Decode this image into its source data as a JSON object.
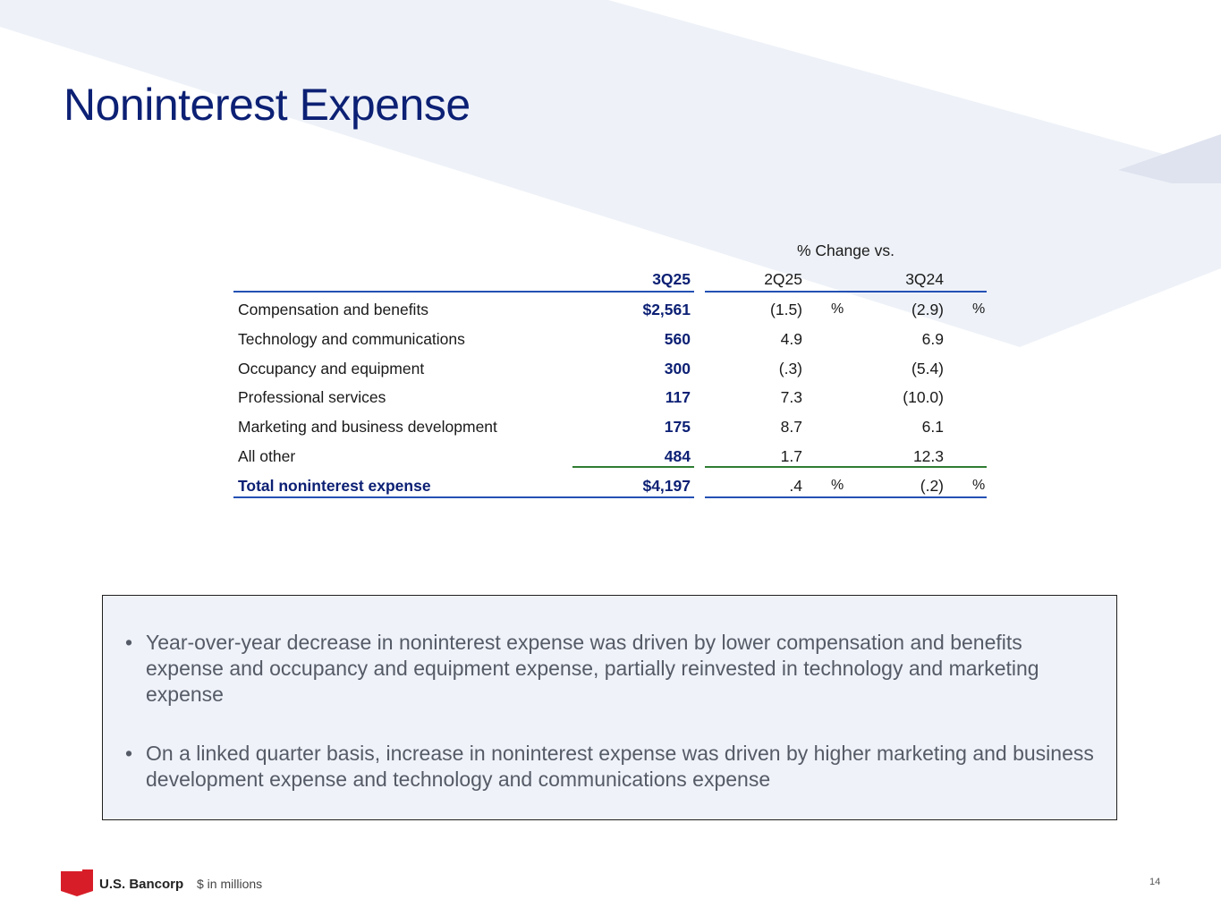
{
  "slide": {
    "title": "Noninterest Expense",
    "page_number": "14",
    "units_note": "$ in millions",
    "brand": "U.S. Bancorp"
  },
  "table": {
    "group_header": "% Change vs.",
    "columns": [
      "3Q25",
      "2Q25",
      "3Q24"
    ],
    "pct_symbol": "%",
    "rows": [
      {
        "label": "Compensation and benefits",
        "q3_25": "$2,561",
        "vs_2q25": "(1.5)",
        "vs_3q24": "(2.9)"
      },
      {
        "label": "Technology and communications",
        "q3_25": "560",
        "vs_2q25": "4.9",
        "vs_3q24": "6.9"
      },
      {
        "label": "Occupancy and equipment",
        "q3_25": "300",
        "vs_2q25": "(.3)",
        "vs_3q24": "(5.4)"
      },
      {
        "label": "Professional services",
        "q3_25": "117",
        "vs_2q25": "7.3",
        "vs_3q24": "(10.0)"
      },
      {
        "label": "Marketing and business development",
        "q3_25": "175",
        "vs_2q25": "8.7",
        "vs_3q24": "6.1"
      },
      {
        "label": "All other",
        "q3_25": "484",
        "vs_2q25": "1.7",
        "vs_3q24": "12.3"
      }
    ],
    "total": {
      "label": "Total noninterest expense",
      "q3_25": "$4,197",
      "vs_2q25": ".4",
      "vs_3q24": "(.2)"
    }
  },
  "callout": {
    "bullets": [
      "Year-over-year decrease in noninterest expense was driven by lower compensation and benefits expense and occupancy and equipment expense, partially reinvested in technology and marketing expense",
      "On a linked quarter basis, increase in noninterest expense was driven by higher marketing and business development expense and technology and communications expense"
    ]
  },
  "colors": {
    "title": "#0c2074",
    "rule_blue": "#2350b4",
    "rule_green": "#2e7d32",
    "brand_red": "#d71e28",
    "bg_band": "#eef2f8"
  }
}
